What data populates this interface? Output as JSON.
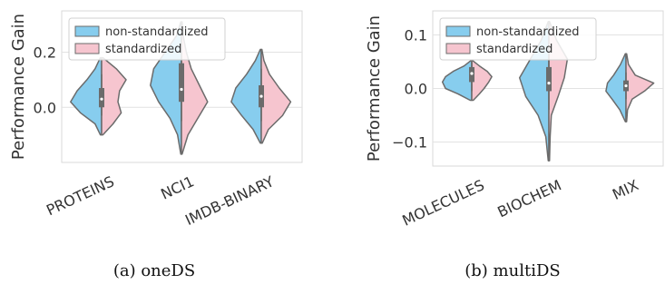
{
  "legend": {
    "non_standardized": "non-standardized",
    "standardized": "standardized"
  },
  "colors": {
    "non_standardized": "#87cdee",
    "standardized": "#f6c5cf",
    "outline": "#6b6b6b",
    "grid": "#e2e2e2",
    "box": "#6b6b6b"
  },
  "chart_data": [
    {
      "type": "violin",
      "caption": "(a) oneDS",
      "ylabel": "Performance Gain",
      "yticks": [
        0.0,
        0.2
      ],
      "ytick_labels": [
        "0.0",
        "0.2"
      ],
      "ylim": [
        -0.2,
        0.35
      ],
      "legend_position": "top-left",
      "grid": true,
      "categories": [
        "PROTEINS",
        "NCI1",
        "IMDB-BINARY"
      ],
      "series": [
        {
          "name": "non-standardized",
          "side": "left",
          "violins": [
            {
              "y": [
                -0.1,
                -0.06,
                -0.02,
                0.02,
                0.06,
                0.1,
                0.14,
                0.18
              ],
              "w": [
                0.04,
                0.2,
                0.65,
                0.95,
                0.75,
                0.45,
                0.2,
                0.04
              ]
            },
            {
              "y": [
                -0.17,
                -0.1,
                -0.04,
                0.02,
                0.08,
                0.14,
                0.2,
                0.26,
                0.31
              ],
              "w": [
                0.02,
                0.12,
                0.35,
                0.7,
                0.95,
                0.85,
                0.5,
                0.15,
                0.02
              ]
            },
            {
              "y": [
                -0.13,
                -0.08,
                -0.03,
                0.02,
                0.07,
                0.12,
                0.17,
                0.21
              ],
              "w": [
                0.03,
                0.25,
                0.6,
                0.92,
                0.78,
                0.45,
                0.18,
                0.03
              ]
            }
          ]
        },
        {
          "name": "standardized",
          "side": "right",
          "violins": [
            {
              "y": [
                -0.1,
                -0.06,
                -0.02,
                0.02,
                0.06,
                0.1,
                0.14,
                0.18
              ],
              "w": [
                0.04,
                0.35,
                0.6,
                0.5,
                0.55,
                0.75,
                0.45,
                0.04
              ]
            },
            {
              "y": [
                -0.17,
                -0.1,
                -0.04,
                0.02,
                0.08,
                0.14,
                0.2,
                0.26,
                0.31
              ],
              "w": [
                0.02,
                0.2,
                0.5,
                0.8,
                0.55,
                0.3,
                0.15,
                0.05,
                0.02
              ]
            },
            {
              "y": [
                -0.13,
                -0.08,
                -0.03,
                0.02,
                0.07,
                0.12,
                0.17,
                0.21
              ],
              "w": [
                0.03,
                0.22,
                0.65,
                0.9,
                0.55,
                0.25,
                0.08,
                0.02
              ]
            }
          ]
        }
      ],
      "box": [
        {
          "q1": 0.0,
          "median": 0.03,
          "q3": 0.07,
          "wlo": -0.03,
          "whi": 0.12
        },
        {
          "q1": 0.02,
          "median": 0.065,
          "q3": 0.16,
          "wlo": -0.05,
          "whi": 0.25
        },
        {
          "q1": 0.0,
          "median": 0.04,
          "q3": 0.08,
          "wlo": -0.05,
          "whi": 0.14
        }
      ]
    },
    {
      "type": "violin",
      "caption": "(b) multiDS",
      "ylabel": "Performance Gain",
      "yticks": [
        -0.1,
        0.0,
        0.1
      ],
      "ytick_labels": [
        "−0.1",
        "0.0",
        "0.1"
      ],
      "ylim": [
        -0.145,
        0.145
      ],
      "legend_position": "top-left",
      "grid": true,
      "categories": [
        "MOLECULES",
        "BIOCHEM",
        "MIX"
      ],
      "series": [
        {
          "name": "non-standardized",
          "side": "left",
          "violins": [
            {
              "y": [
                -0.022,
                -0.01,
                0.0,
                0.012,
                0.022,
                0.032,
                0.042,
                0.052
              ],
              "w": [
                0.05,
                0.45,
                0.85,
                0.95,
                0.85,
                0.6,
                0.25,
                0.03
              ]
            },
            {
              "y": [
                -0.135,
                -0.09,
                -0.05,
                -0.015,
                0.02,
                0.055,
                0.09,
                0.125
              ],
              "w": [
                0.02,
                0.1,
                0.35,
                0.75,
                0.95,
                0.6,
                0.25,
                0.02
              ]
            },
            {
              "y": [
                -0.062,
                -0.04,
                -0.02,
                -0.005,
                0.01,
                0.025,
                0.045,
                0.065
              ],
              "w": [
                0.02,
                0.2,
                0.45,
                0.65,
                0.6,
                0.4,
                0.18,
                0.02
              ]
            }
          ]
        },
        {
          "name": "standardized",
          "side": "right",
          "violins": [
            {
              "y": [
                -0.022,
                -0.01,
                0.0,
                0.012,
                0.022,
                0.032,
                0.042,
                0.052
              ],
              "w": [
                0.05,
                0.25,
                0.4,
                0.55,
                0.65,
                0.5,
                0.25,
                0.03
              ]
            },
            {
              "y": [
                -0.135,
                -0.09,
                -0.05,
                -0.015,
                0.02,
                0.055,
                0.09,
                0.125
              ],
              "w": [
                0.02,
                0.04,
                0.08,
                0.3,
                0.5,
                0.6,
                0.25,
                0.02
              ]
            },
            {
              "y": [
                -0.062,
                -0.04,
                -0.02,
                -0.005,
                0.01,
                0.025,
                0.045,
                0.065
              ],
              "w": [
                0.02,
                0.05,
                0.2,
                0.6,
                0.9,
                0.3,
                0.08,
                0.02
              ]
            }
          ]
        }
      ],
      "box": [
        {
          "q1": 0.012,
          "median": 0.028,
          "q3": 0.04,
          "wlo": -0.005,
          "whi": 0.05
        },
        {
          "q1": -0.005,
          "median": 0.01,
          "q3": 0.04,
          "wlo": -0.04,
          "whi": 0.08
        },
        {
          "q1": -0.005,
          "median": 0.005,
          "q3": 0.015,
          "wlo": -0.02,
          "whi": 0.03
        }
      ]
    }
  ]
}
